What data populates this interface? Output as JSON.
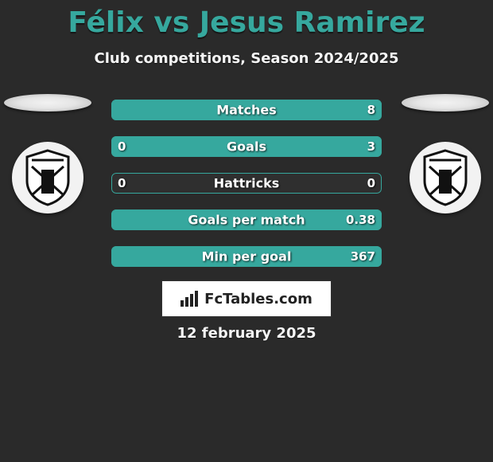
{
  "title": "Félix vs Jesus Ramirez",
  "subtitle": "Club competitions, Season 2024/2025",
  "date": "12 february 2025",
  "brand": "FcTables.com",
  "colors": {
    "accent": "#36a89e",
    "background": "#2a2a2a",
    "track": "#2f2f2f",
    "text": "#ffffff"
  },
  "stats": [
    {
      "label": "Matches",
      "left_value": "",
      "right_value": "8",
      "left_fill_pct": 100,
      "right_fill_pct": 0
    },
    {
      "label": "Goals",
      "left_value": "0",
      "right_value": "3",
      "left_fill_pct": 0,
      "right_fill_pct": 100
    },
    {
      "label": "Hattricks",
      "left_value": "0",
      "right_value": "0",
      "left_fill_pct": 0,
      "right_fill_pct": 0
    },
    {
      "label": "Goals per match",
      "left_value": "",
      "right_value": "0.38",
      "left_fill_pct": 100,
      "right_fill_pct": 0
    },
    {
      "label": "Min per goal",
      "left_value": "",
      "right_value": "367",
      "left_fill_pct": 100,
      "right_fill_pct": 0
    }
  ]
}
